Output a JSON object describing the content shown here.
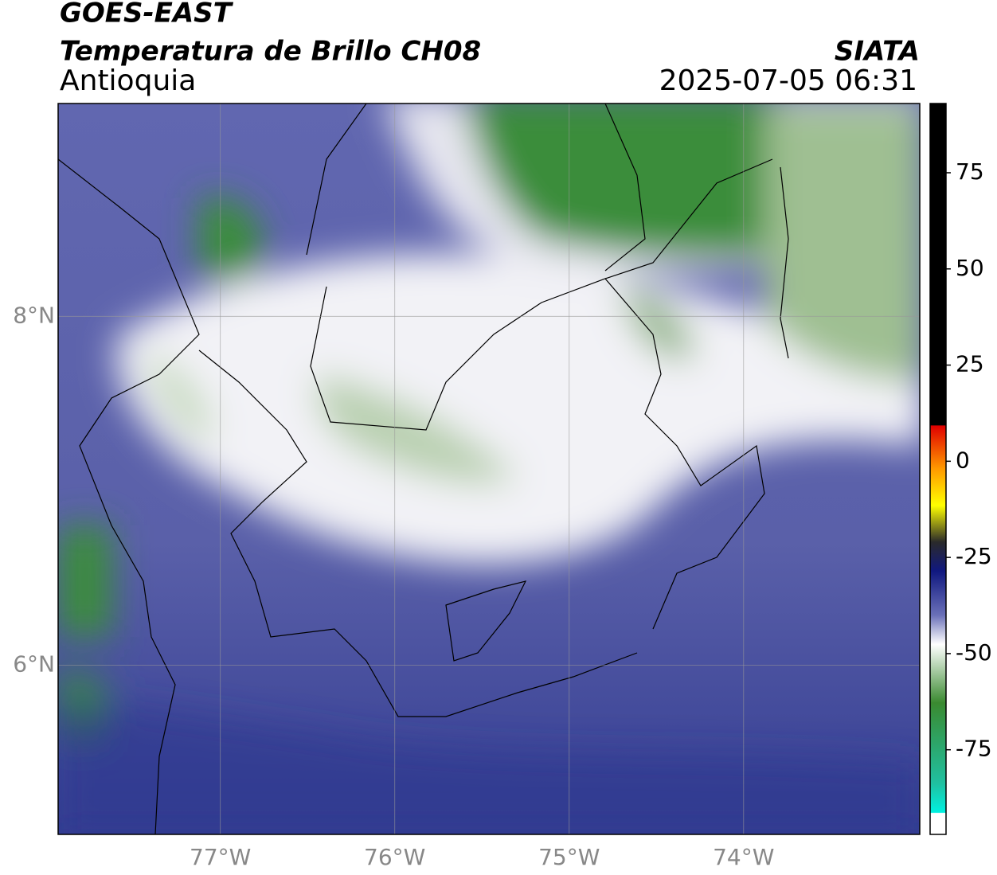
{
  "header": {
    "title": "GOES-EAST",
    "subtitle": "Temperatura de Brillo CH08",
    "region": "Antioquia",
    "source": "SIATA",
    "timestamp": "2025-07-05 06:31"
  },
  "map": {
    "xlim": [
      -77.93,
      -72.99
    ],
    "ylim": [
      5.03,
      9.22
    ],
    "xticks": [
      {
        "value": -77,
        "label": "77°W"
      },
      {
        "value": -76,
        "label": "76°W"
      },
      {
        "value": -75,
        "label": "75°W"
      },
      {
        "value": -74,
        "label": "74°W"
      }
    ],
    "yticks": [
      {
        "value": 8,
        "label": "8°N"
      },
      {
        "value": 6,
        "label": "6°N"
      }
    ],
    "grid": true
  },
  "colorbar": {
    "lim": [
      -97,
      93
    ],
    "ticks": [
      75,
      50,
      25,
      0,
      -25,
      -50,
      -75
    ]
  }
}
